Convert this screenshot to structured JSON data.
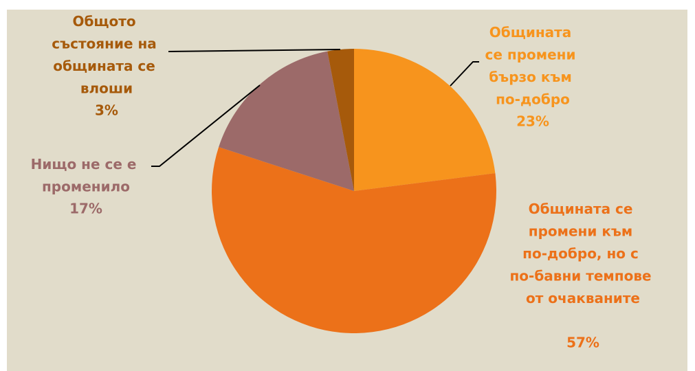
{
  "chart_data": {
    "type": "pie",
    "categories": [
      "Общината се промени бързо към по-добро",
      "Общината се промени към по-добро, но с по-бавни темпове от очакваните",
      "Нищо не се е променило",
      "Общото състояние на общината се влоши"
    ],
    "values": [
      23,
      57,
      17,
      3
    ],
    "value_labels": [
      "23%",
      "57%",
      "17%",
      "3%"
    ],
    "colors": [
      "#F7941D",
      "#EC7119",
      "#9C6A69",
      "#A65A0B"
    ]
  }
}
